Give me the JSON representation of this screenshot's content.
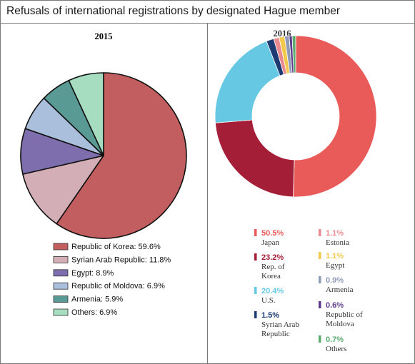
{
  "title": "Refusals of international registrations by designated Hague member",
  "chart_data": [
    {
      "type": "pie",
      "title": "2015",
      "legend_position": "bottom",
      "slices": [
        {
          "label": "Republic of Korea: 59.6%",
          "value": 59.6,
          "color": "#c25e5f"
        },
        {
          "label": "Syrian Arab Republic: 11.8%",
          "value": 11.8,
          "color": "#d3aeb6"
        },
        {
          "label": "Egypt: 8.9%",
          "value": 8.9,
          "color": "#7e6ead"
        },
        {
          "label": "Republic of Moldova: 6.9%",
          "value": 6.9,
          "color": "#a9bfdb"
        },
        {
          "label": "Armenia: 5.9%",
          "value": 5.9,
          "color": "#5a9a94"
        },
        {
          "label": "Others: 6.9%",
          "value": 6.9,
          "color": "#a6dcbf"
        }
      ]
    },
    {
      "type": "pie",
      "variant": "donut",
      "title": "2016",
      "legend_position": "bottom",
      "slices": [
        {
          "pct": "50.5%",
          "value": 50.5,
          "name_lines": [
            "Japan"
          ],
          "color": "#e85b58"
        },
        {
          "pct": "23.2%",
          "value": 23.2,
          "name_lines": [
            "Rep. of",
            "Korea"
          ],
          "color": "#a51e37"
        },
        {
          "pct": "20.4%",
          "value": 20.4,
          "name_lines": [
            "U.S."
          ],
          "color": "#66c8e2"
        },
        {
          "pct": "1.5%",
          "value": 1.5,
          "name_lines": [
            "Syrian Arab",
            "Republic"
          ],
          "color": "#1e3a73"
        },
        {
          "pct": "1.1%",
          "value": 1.1,
          "name_lines": [
            "Estonia"
          ],
          "color": "#e88a90"
        },
        {
          "pct": "1.1%",
          "value": 1.1,
          "name_lines": [
            "Egypt"
          ],
          "color": "#f2c94c"
        },
        {
          "pct": "0.9%",
          "value": 0.9,
          "name_lines": [
            "Armenia"
          ],
          "color": "#8f9ab8"
        },
        {
          "pct": "0.6%",
          "value": 0.6,
          "name_lines": [
            "Republic of",
            "Moldova"
          ],
          "color": "#5e3b8c"
        },
        {
          "pct": "0.7%",
          "value": 0.7,
          "name_lines": [
            "Others"
          ],
          "color": "#5aaa6e"
        }
      ]
    }
  ]
}
